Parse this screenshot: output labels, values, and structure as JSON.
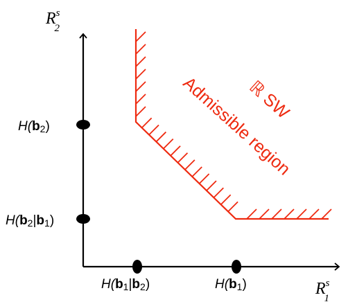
{
  "axes": {
    "y_label": {
      "main": "R",
      "sub": "2",
      "sup": "s"
    },
    "x_label": {
      "main": "R",
      "sub": "1",
      "sup": "s"
    }
  },
  "points": {
    "y_upper": {
      "fn": "H(",
      "bold": "b",
      "sub": "2",
      "close": ")"
    },
    "y_lower": {
      "fn": "H(",
      "bold1": "b",
      "sub1": "2",
      "bar": "|",
      "bold2": "b",
      "sub2": "1",
      "close": ")"
    },
    "x_left": {
      "fn": "H(",
      "bold1": "b",
      "sub1": "1",
      "bar": "|",
      "bold2": "b",
      "sub2": "2",
      "close": ")"
    },
    "x_right": {
      "fn": "H(",
      "bold": "b",
      "sub": "1",
      "close": ")"
    }
  },
  "region": {
    "label_line1": "ℝ SW",
    "label_line2": "Admissible region",
    "color": "#ee2a10"
  }
}
